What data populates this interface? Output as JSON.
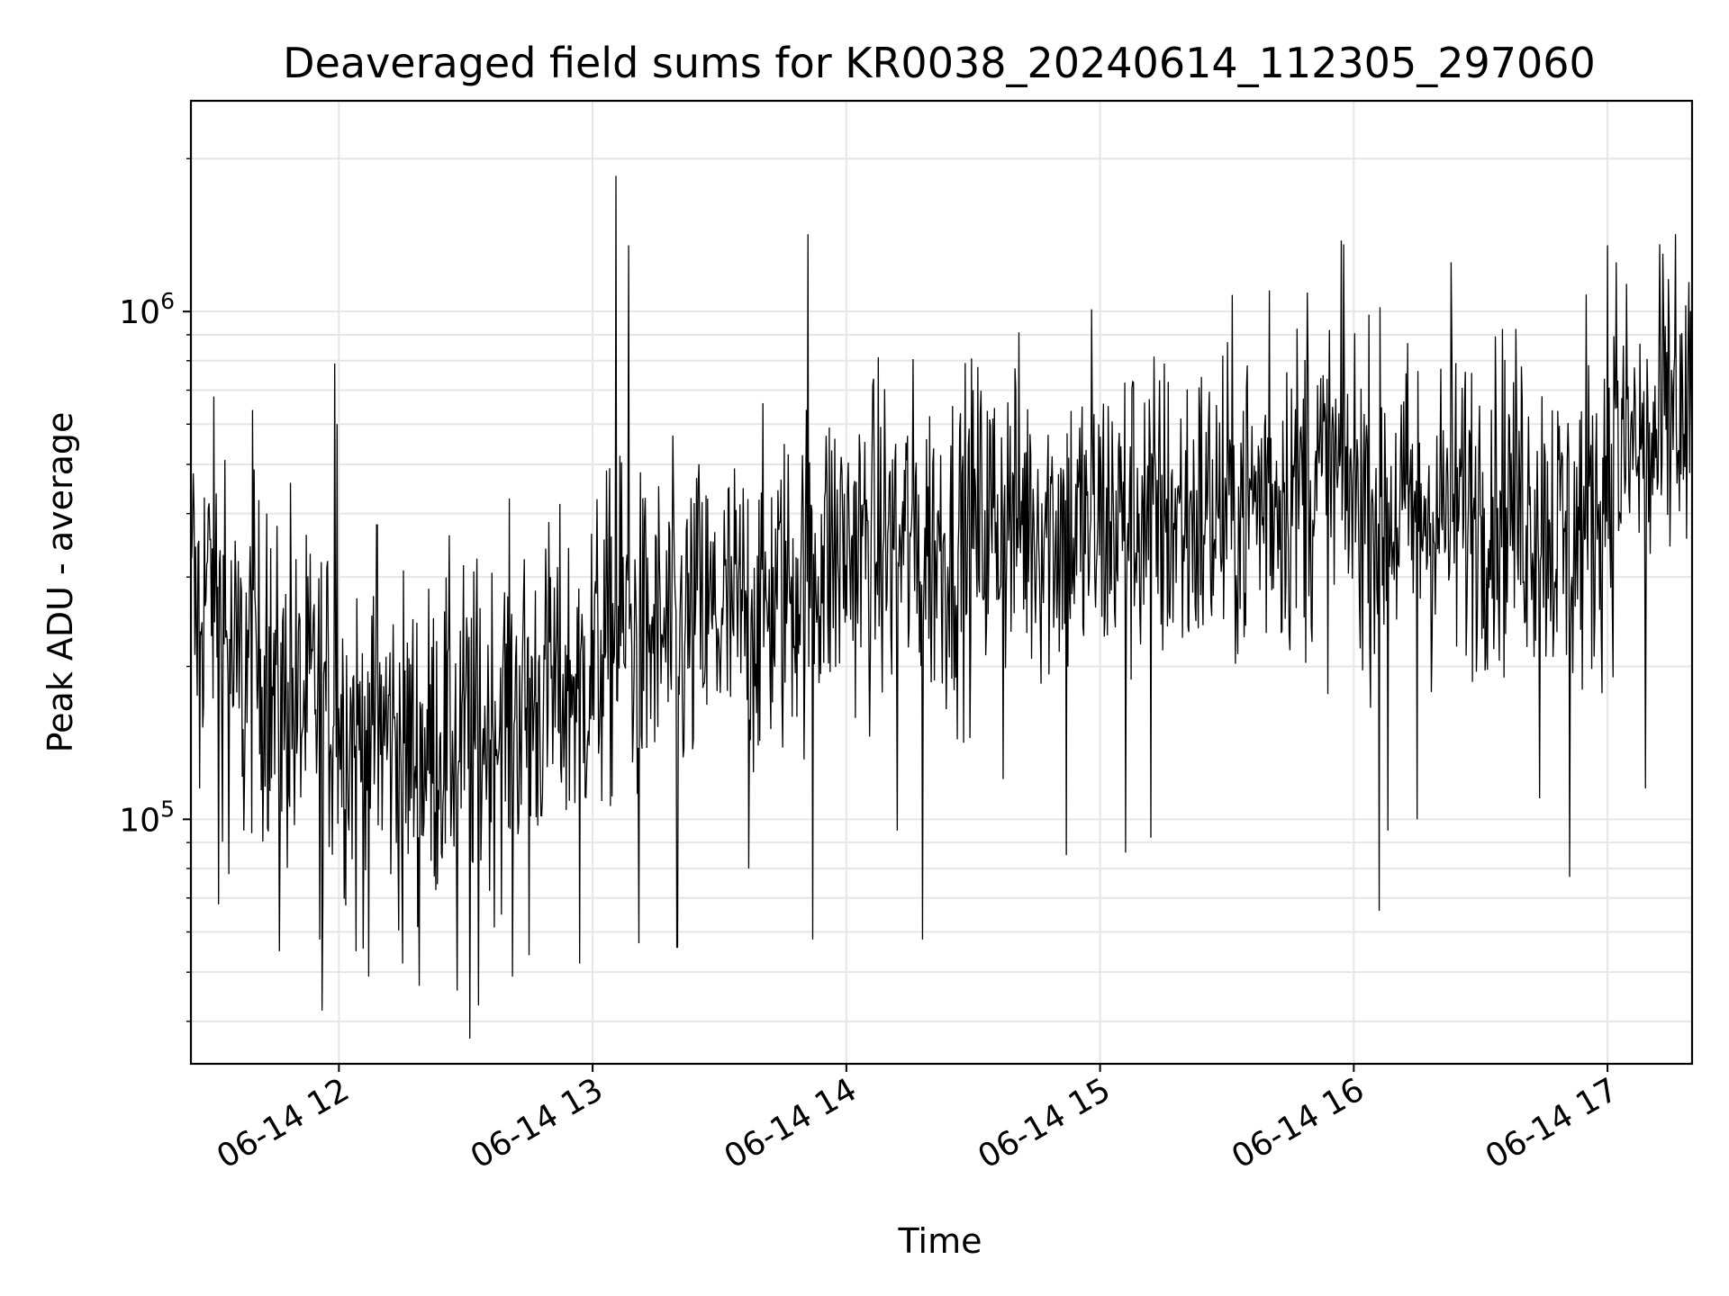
{
  "chart_data": {
    "type": "line",
    "title": "Deaveraged field sums for KR0038_20240614_112305_297060",
    "xlabel": "Time",
    "ylabel": "Peak ADU - average",
    "y_scale": "log",
    "ylim": [
      33000,
      2600000
    ],
    "xlim": [
      "2024-06-14T11:25:00",
      "2024-06-14T17:20:00"
    ],
    "grid": true,
    "line_color": "#000000",
    "grid_color": "#e6e6e6",
    "x_ticks": [
      {
        "t": "2024-06-14T12:00:00",
        "label": "06-14 12"
      },
      {
        "t": "2024-06-14T13:00:00",
        "label": "06-14 13"
      },
      {
        "t": "2024-06-14T14:00:00",
        "label": "06-14 14"
      },
      {
        "t": "2024-06-14T15:00:00",
        "label": "06-14 15"
      },
      {
        "t": "2024-06-14T16:00:00",
        "label": "06-14 16"
      },
      {
        "t": "2024-06-14T17:00:00",
        "label": "06-14 17"
      }
    ],
    "y_ticks": [
      {
        "value": 100000,
        "base": "10",
        "exp": "5"
      },
      {
        "value": 1000000,
        "base": "10",
        "exp": "6"
      }
    ],
    "series": [
      {
        "points": [
          [
            "2024-06-14T11:25:00",
            250000
          ],
          [
            "2024-06-14T11:30:00",
            300000
          ],
          [
            "2024-06-14T11:35:00",
            190000
          ],
          [
            "2024-06-14T11:40:00",
            210000
          ],
          [
            "2024-06-14T11:45:00",
            170000
          ],
          [
            "2024-06-14T11:50:00",
            160000
          ],
          [
            "2024-06-14T11:55:00",
            180000
          ],
          [
            "2024-06-14T12:00:00",
            155000
          ],
          [
            "2024-06-14T12:05:00",
            145000
          ],
          [
            "2024-06-14T12:10:00",
            150000
          ],
          [
            "2024-06-14T12:15:00",
            140000
          ],
          [
            "2024-06-14T12:20:00",
            135000
          ],
          [
            "2024-06-14T12:25:00",
            145000
          ],
          [
            "2024-06-14T12:30:00",
            150000
          ],
          [
            "2024-06-14T12:35:00",
            150000
          ],
          [
            "2024-06-14T12:40:00",
            165000
          ],
          [
            "2024-06-14T12:45:00",
            170000
          ],
          [
            "2024-06-14T12:50:00",
            175000
          ],
          [
            "2024-06-14T12:55:00",
            185000
          ],
          [
            "2024-06-14T13:00:00",
            200000
          ],
          [
            "2024-06-14T13:05:00",
            230000
          ],
          [
            "2024-06-14T13:10:00",
            220000
          ],
          [
            "2024-06-14T13:15:00",
            225000
          ],
          [
            "2024-06-14T13:20:00",
            230000
          ],
          [
            "2024-06-14T13:25:00",
            240000
          ],
          [
            "2024-06-14T13:30:00",
            250000
          ],
          [
            "2024-06-14T13:35:00",
            250000
          ],
          [
            "2024-06-14T13:40:00",
            260000
          ],
          [
            "2024-06-14T13:45:00",
            280000
          ],
          [
            "2024-06-14T13:50:00",
            310000
          ],
          [
            "2024-06-14T13:55:00",
            330000
          ],
          [
            "2024-06-14T14:00:00",
            340000
          ],
          [
            "2024-06-14T14:05:00",
            345000
          ],
          [
            "2024-06-14T14:10:00",
            350000
          ],
          [
            "2024-06-14T14:15:00",
            355000
          ],
          [
            "2024-06-14T14:20:00",
            350000
          ],
          [
            "2024-06-14T14:25:00",
            340000
          ],
          [
            "2024-06-14T14:30:00",
            370000
          ],
          [
            "2024-06-14T14:35:00",
            390000
          ],
          [
            "2024-06-14T14:40:00",
            400000
          ],
          [
            "2024-06-14T14:45:00",
            390000
          ],
          [
            "2024-06-14T14:50:00",
            380000
          ],
          [
            "2024-06-14T14:55:00",
            370000
          ],
          [
            "2024-06-14T15:00:00",
            380000
          ],
          [
            "2024-06-14T15:05:00",
            390000
          ],
          [
            "2024-06-14T15:10:00",
            400000
          ],
          [
            "2024-06-14T15:15:00",
            395000
          ],
          [
            "2024-06-14T15:20:00",
            390000
          ],
          [
            "2024-06-14T15:25:00",
            400000
          ],
          [
            "2024-06-14T15:30:00",
            410000
          ],
          [
            "2024-06-14T15:35:00",
            420000
          ],
          [
            "2024-06-14T15:40:00",
            440000
          ],
          [
            "2024-06-14T15:45:00",
            450000
          ],
          [
            "2024-06-14T15:50:00",
            460000
          ],
          [
            "2024-06-14T15:55:00",
            470000
          ],
          [
            "2024-06-14T16:00:00",
            450000
          ],
          [
            "2024-06-14T16:05:00",
            420000
          ],
          [
            "2024-06-14T16:10:00",
            400000
          ],
          [
            "2024-06-14T16:15:00",
            410000
          ],
          [
            "2024-06-14T16:20:00",
            400000
          ],
          [
            "2024-06-14T16:25:00",
            410000
          ],
          [
            "2024-06-14T16:30:00",
            420000
          ],
          [
            "2024-06-14T16:35:00",
            430000
          ],
          [
            "2024-06-14T16:40:00",
            420000
          ],
          [
            "2024-06-14T16:45:00",
            400000
          ],
          [
            "2024-06-14T16:50:00",
            350000
          ],
          [
            "2024-06-14T16:55:00",
            380000
          ],
          [
            "2024-06-14T17:00:00",
            450000
          ],
          [
            "2024-06-14T17:05:00",
            550000
          ],
          [
            "2024-06-14T17:10:00",
            500000
          ],
          [
            "2024-06-14T17:15:00",
            600000
          ],
          [
            "2024-06-14T17:20:00",
            550000
          ]
        ],
        "spikes": [
          [
            "2024-06-14T11:25:30",
            480000
          ],
          [
            "2024-06-14T11:27:00",
            115000
          ],
          [
            "2024-06-14T11:30:30",
            680000
          ],
          [
            "2024-06-14T11:31:30",
            68000
          ],
          [
            "2024-06-14T11:33:00",
            510000
          ],
          [
            "2024-06-14T11:34:00",
            78000
          ],
          [
            "2024-06-14T11:37:30",
            95000
          ],
          [
            "2024-06-14T11:39:30",
            640000
          ],
          [
            "2024-06-14T11:43:00",
            400000
          ],
          [
            "2024-06-14T11:46:00",
            55000
          ],
          [
            "2024-06-14T11:48:30",
            460000
          ],
          [
            "2024-06-14T11:55:30",
            58000
          ],
          [
            "2024-06-14T11:56:00",
            42000
          ],
          [
            "2024-06-14T11:59:00",
            790000
          ],
          [
            "2024-06-14T11:59:30",
            600000
          ],
          [
            "2024-06-14T12:04:00",
            55000
          ],
          [
            "2024-06-14T12:07:00",
            49000
          ],
          [
            "2024-06-14T12:09:00",
            380000
          ],
          [
            "2024-06-14T12:15:00",
            52000
          ],
          [
            "2024-06-14T12:19:00",
            47000
          ],
          [
            "2024-06-14T12:28:00",
            46000
          ],
          [
            "2024-06-14T12:31:00",
            37000
          ],
          [
            "2024-06-14T12:33:00",
            43000
          ],
          [
            "2024-06-14T12:41:00",
            49000
          ],
          [
            "2024-06-14T12:45:00",
            54000
          ],
          [
            "2024-06-14T12:50:00",
            300000
          ],
          [
            "2024-06-14T12:57:00",
            52000
          ],
          [
            "2024-06-14T13:05:30",
            1850000
          ],
          [
            "2024-06-14T13:06:30",
            520000
          ],
          [
            "2024-06-14T13:08:30",
            1350000
          ],
          [
            "2024-06-14T13:11:00",
            57000
          ],
          [
            "2024-06-14T13:20:00",
            56000
          ],
          [
            "2024-06-14T13:25:00",
            450000
          ],
          [
            "2024-06-14T13:37:00",
            80000
          ],
          [
            "2024-06-14T13:51:00",
            1420000
          ],
          [
            "2024-06-14T13:52:00",
            58000
          ],
          [
            "2024-06-14T14:12:00",
            95000
          ],
          [
            "2024-06-14T14:18:00",
            58000
          ],
          [
            "2024-06-14T14:30:00",
            700000
          ],
          [
            "2024-06-14T14:37:00",
            120000
          ],
          [
            "2024-06-14T14:52:00",
            85000
          ],
          [
            "2024-06-14T14:58:00",
            1010000
          ],
          [
            "2024-06-14T15:06:00",
            86000
          ],
          [
            "2024-06-14T15:12:00",
            92000
          ],
          [
            "2024-06-14T15:40:00",
            1100000
          ],
          [
            "2024-06-14T15:49:00",
            1090000
          ],
          [
            "2024-06-14T15:57:00",
            1380000
          ],
          [
            "2024-06-14T16:06:00",
            66000
          ],
          [
            "2024-06-14T16:08:00",
            95000
          ],
          [
            "2024-06-14T16:15:00",
            100000
          ],
          [
            "2024-06-14T16:23:00",
            1250000
          ],
          [
            "2024-06-14T16:44:00",
            110000
          ],
          [
            "2024-06-14T16:51:00",
            77000
          ],
          [
            "2024-06-14T16:55:00",
            1080000
          ],
          [
            "2024-06-14T17:00:00",
            1350000
          ],
          [
            "2024-06-14T17:02:00",
            1250000
          ],
          [
            "2024-06-14T17:09:00",
            115000
          ],
          [
            "2024-06-14T17:13:00",
            1300000
          ],
          [
            "2024-06-14T17:16:00",
            1420000
          ],
          [
            "2024-06-14T17:19:00",
            880000
          ]
        ]
      }
    ]
  }
}
